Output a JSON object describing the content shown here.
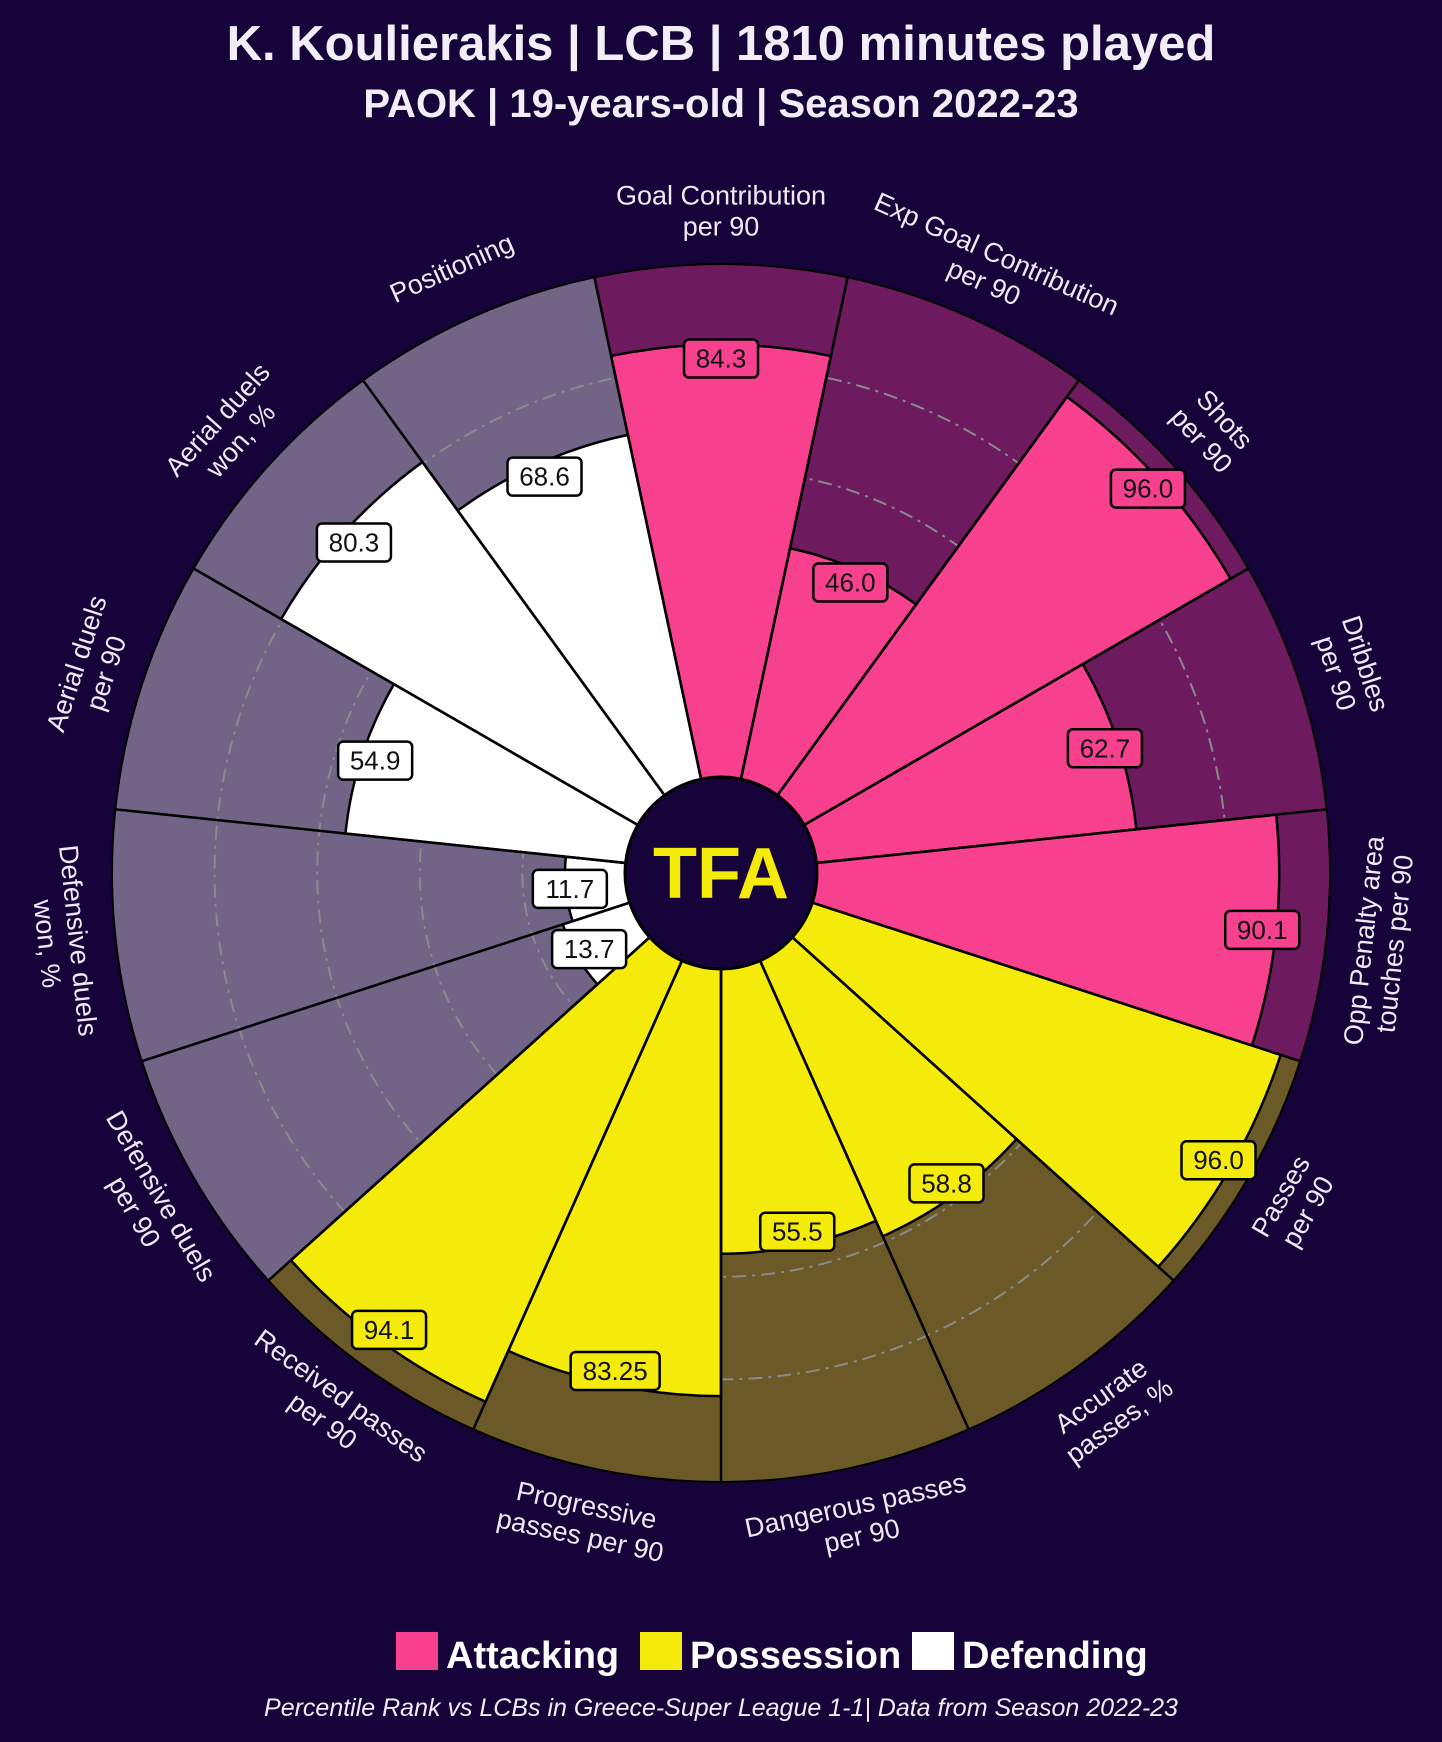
{
  "header": {
    "title": "K. Koulierakis | LCB | 1810 minutes played",
    "subtitle": "PAOK | 19-years-old | Season 2022-23"
  },
  "logo": {
    "text": "TFA",
    "color": "#f5eb0a"
  },
  "colors": {
    "background": "#16033a",
    "attacking": "#f7418f",
    "attacking_bg": "#6d1a5f",
    "possession": "#f5eb0a",
    "possession_bg": "#6b5a27",
    "defending": "#ffffff",
    "defending_bg": "#716487",
    "grid": "#8a8a8a"
  },
  "chart_data": {
    "type": "pizza",
    "title": "K. Koulierakis | LCB | 1810 minutes played",
    "range": [
      0,
      100
    ],
    "gridlines": [
      20,
      40,
      60,
      80
    ],
    "params": [
      {
        "label": [
          "Goal Contribution",
          "per 90"
        ],
        "value": 84.3,
        "display": "84.3",
        "group": "attacking"
      },
      {
        "label": [
          "Exp Goal Contribution",
          "per 90"
        ],
        "value": 46.0,
        "display": "46.0",
        "group": "attacking"
      },
      {
        "label": [
          "Shots",
          "per 90"
        ],
        "value": 96.0,
        "display": "96.0",
        "group": "attacking"
      },
      {
        "label": [
          "Dribbles",
          "per 90"
        ],
        "value": 62.7,
        "display": "62.7",
        "group": "attacking"
      },
      {
        "label": [
          "Opp Penalty area",
          "touches per 90"
        ],
        "value": 90.1,
        "display": "90.1",
        "group": "attacking"
      },
      {
        "label": [
          "Passes",
          "per 90"
        ],
        "value": 96.0,
        "display": "96.0",
        "group": "possession"
      },
      {
        "label": [
          "Accurate",
          "passes, %"
        ],
        "value": 58.8,
        "display": "58.8",
        "group": "possession"
      },
      {
        "label": [
          "Dangerous passes",
          "per 90"
        ],
        "value": 55.5,
        "display": "55.5",
        "group": "possession"
      },
      {
        "label": [
          "Progressive",
          "passes per 90"
        ],
        "value": 83.25,
        "display": "83.25",
        "group": "possession"
      },
      {
        "label": [
          "Received passes",
          "per 90"
        ],
        "value": 94.1,
        "display": "94.1",
        "group": "possession"
      },
      {
        "label": [
          "Defensive duels",
          "per 90"
        ],
        "value": 13.7,
        "display": "13.7",
        "group": "defending"
      },
      {
        "label": [
          "Defensive duels",
          "won, %"
        ],
        "value": 11.7,
        "display": "11.7",
        "group": "defending"
      },
      {
        "label": [
          "Aerial duels",
          "per 90"
        ],
        "value": 54.9,
        "display": "54.9",
        "group": "defending"
      },
      {
        "label": [
          "Aerial duels",
          "won, %"
        ],
        "value": 80.3,
        "display": "80.3",
        "group": "defending"
      },
      {
        "label": [
          "Positioning"
        ],
        "value": 68.6,
        "display": "68.6",
        "group": "defending"
      }
    ],
    "legend": [
      {
        "label": "Attacking",
        "group": "attacking"
      },
      {
        "label": "Possession",
        "group": "possession"
      },
      {
        "label": "Defending",
        "group": "defending"
      }
    ],
    "legend_position": "bottom-center"
  },
  "footer": {
    "note": "Percentile Rank vs LCBs in Greece-Super League 1-1| Data from Season 2022-23"
  }
}
